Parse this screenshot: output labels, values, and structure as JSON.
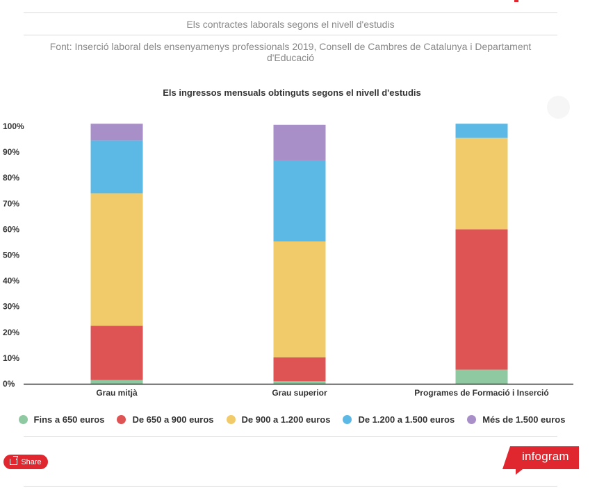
{
  "caption": "Els contractes laborals segons el nivell d'estudis",
  "source": "Font: Inserció laboral dels ensenyamenys professionals 2019, Consell de Cambres de Catalunya i Departament d'Educació",
  "chart_data": {
    "type": "bar",
    "stacked": true,
    "title": "Els ingressos mensuals obtinguts segons el nivell d'estudis",
    "xlabel": "",
    "ylabel": "",
    "ylim": [
      0,
      100
    ],
    "yticks": [
      "0%",
      "10%",
      "20%",
      "30%",
      "40%",
      "50%",
      "60%",
      "70%",
      "80%",
      "90%",
      "100%"
    ],
    "grid": false,
    "legend_position": "bottom",
    "categories": [
      "Grau mitjà",
      "Grau superior",
      "Programes de Formació i Inserció"
    ],
    "series": [
      {
        "name": "Fins a 650 euros",
        "color": "#8fc9a1",
        "values": [
          1.5,
          1,
          5.5
        ]
      },
      {
        "name": "De 650 a 900 euros",
        "color": "#de5353",
        "values": [
          21,
          9.3,
          54.5
        ]
      },
      {
        "name": "De 900 a 1.200 euros",
        "color": "#f1cb6a",
        "values": [
          51.5,
          45,
          35.5
        ]
      },
      {
        "name": "De 1.200 a 1.500 euros",
        "color": "#5cb8e4",
        "values": [
          20.5,
          31.5,
          5.5
        ]
      },
      {
        "name": "Més de 1.500 euros",
        "color": "#a98fc8",
        "values": [
          6.5,
          13.8,
          0
        ]
      }
    ]
  },
  "share": {
    "label": "Share"
  },
  "brand": {
    "label": "infogram",
    "color": "#e0262f"
  }
}
